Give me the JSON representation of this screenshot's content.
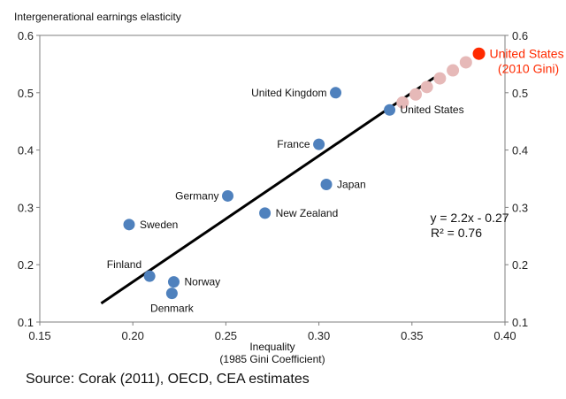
{
  "chart_data": {
    "type": "scatter",
    "title": "",
    "ylabel": "Intergenerational earnings elasticity",
    "xlabel": "Inequality",
    "xlabel_sub": "(1985 Gini Coefficient)",
    "xlim": [
      0.15,
      0.4
    ],
    "ylim": [
      0.1,
      0.6
    ],
    "x_ticks": [
      "0.15",
      "0.20",
      "0.25",
      "0.30",
      "0.35",
      "0.40"
    ],
    "y_ticks": [
      "0.1",
      "0.2",
      "0.3",
      "0.4",
      "0.5",
      "0.6"
    ],
    "y_ticks_right": [
      "0.1",
      "0.2",
      "0.3",
      "0.4",
      "0.5",
      "0.6"
    ],
    "grid": false,
    "points": [
      {
        "label": "United Kingdom",
        "x": 0.309,
        "y": 0.5,
        "label_pos": "left"
      },
      {
        "label": "United States",
        "x": 0.338,
        "y": 0.47,
        "label_pos": "right",
        "label_color": "#b3b3b3"
      },
      {
        "label": "France",
        "x": 0.3,
        "y": 0.41,
        "label_pos": "left"
      },
      {
        "label": "Japan",
        "x": 0.304,
        "y": 0.34,
        "label_pos": "right"
      },
      {
        "label": "Germany",
        "x": 0.251,
        "y": 0.32,
        "label_pos": "left"
      },
      {
        "label": "New Zealand",
        "x": 0.271,
        "y": 0.29,
        "label_pos": "right"
      },
      {
        "label": "Sweden",
        "x": 0.198,
        "y": 0.27,
        "label_pos": "right"
      },
      {
        "label": "Finland",
        "x": 0.209,
        "y": 0.18,
        "label_pos": "above-left"
      },
      {
        "label": "Norway",
        "x": 0.222,
        "y": 0.17,
        "label_pos": "right"
      },
      {
        "label": "Denmark",
        "x": 0.221,
        "y": 0.15,
        "label_pos": "below"
      }
    ],
    "projection_points": [
      {
        "x": 0.345,
        "y": 0.483
      },
      {
        "x": 0.352,
        "y": 0.497
      },
      {
        "x": 0.358,
        "y": 0.51
      },
      {
        "x": 0.365,
        "y": 0.525
      },
      {
        "x": 0.372,
        "y": 0.539
      },
      {
        "x": 0.379,
        "y": 0.553
      }
    ],
    "highlight_point": {
      "label": "United States",
      "label_line2": "(2010 Gini)",
      "x": 0.386,
      "y": 0.568
    },
    "trendline": {
      "x_start": 0.183,
      "x_end": 0.362,
      "slope": 2.2,
      "intercept": -0.27
    },
    "equation": "y = 2.2x - 0.27",
    "r_squared": "R² = 0.76",
    "colors": {
      "point": "#4f81bd",
      "projection": "#e6b9b8",
      "highlight": "#ff2a00",
      "trendline": "#000000",
      "axis": "#7f7f7f"
    }
  },
  "source": "Source: Corak (2011), OECD, CEA estimates"
}
